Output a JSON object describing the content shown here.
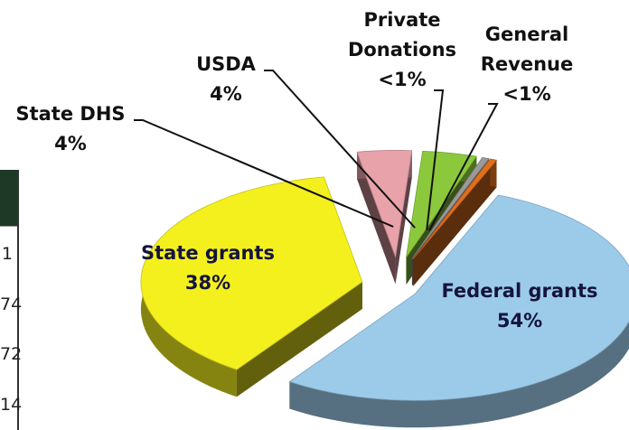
{
  "chart_data": {
    "type": "pie",
    "categories": [
      "State DHS",
      "USDA",
      "Private Donations",
      "General Revenue",
      "Federal grants",
      "State grants"
    ],
    "values": [
      4,
      4,
      0.5,
      0.5,
      54,
      38
    ],
    "value_labels": [
      "4%",
      "4%",
      "<1%",
      "<1%",
      "54%",
      "38%"
    ],
    "colors": [
      "#e8a2aa",
      "#8cc83c",
      "#9a9a9a",
      "#e0701e",
      "#9ccbea",
      "#f4f01e"
    ]
  },
  "table": {
    "cells": [
      "1",
      "74",
      "72",
      "14"
    ]
  }
}
